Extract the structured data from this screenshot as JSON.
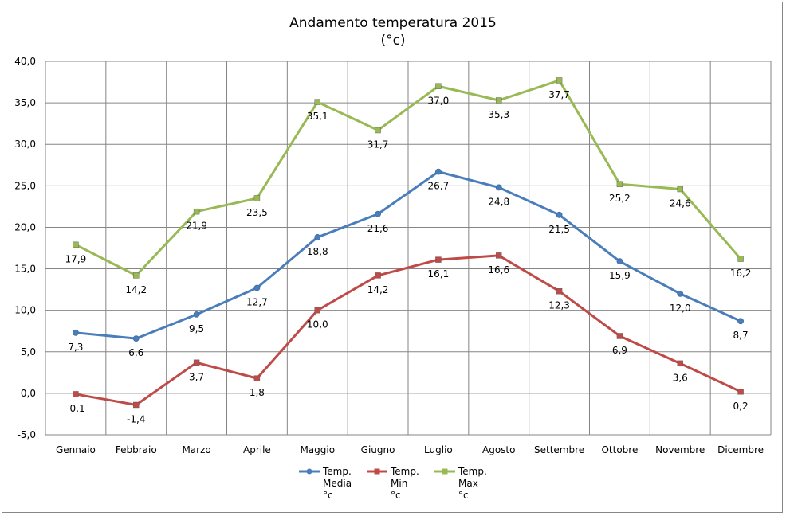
{
  "chart_data": {
    "type": "line",
    "title": "Andamento temperatura 2015",
    "subtitle": "(°c)",
    "categories": [
      "Gennaio",
      "Febbraio",
      "Marzo",
      "Aprile",
      "Maggio",
      "Giugno",
      "Luglio",
      "Agosto",
      "Settembre",
      "Ottobre",
      "Novembre",
      "Dicembre"
    ],
    "ylim": [
      -5,
      40
    ],
    "ytick_step": 5,
    "ytick_labels": [
      "-5,0",
      "0,0",
      "5,0",
      "10,0",
      "15,0",
      "20,0",
      "25,0",
      "30,0",
      "35,0",
      "40,0"
    ],
    "grid": true,
    "legend_position": "bottom",
    "series": [
      {
        "name_lines": [
          "Temp.",
          "Media",
          "°c"
        ],
        "color": "#4a7ebb",
        "marker": "circle",
        "values": [
          7.3,
          6.6,
          9.5,
          12.7,
          18.8,
          21.6,
          26.7,
          24.8,
          21.5,
          15.9,
          12.0,
          8.7
        ],
        "labels": [
          "7,3",
          "6,6",
          "9,5",
          "12,7",
          "18,8",
          "21,6",
          "26,7",
          "24,8",
          "21,5",
          "15,9",
          "12,0",
          "8,7"
        ]
      },
      {
        "name_lines": [
          "Temp.",
          "Min",
          "°c"
        ],
        "color": "#be4b48",
        "marker": "square",
        "values": [
          -0.1,
          -1.4,
          3.7,
          1.8,
          10.0,
          14.2,
          16.1,
          16.6,
          12.3,
          6.9,
          3.6,
          0.2
        ],
        "labels": [
          "-0,1",
          "-1,4",
          "3,7",
          "1,8",
          "10,0",
          "14,2",
          "16,1",
          "16,6",
          "12,3",
          "6,9",
          "3,6",
          "0,2"
        ]
      },
      {
        "name_lines": [
          "Temp.",
          "Max",
          "°c"
        ],
        "color": "#98b954",
        "marker": "square",
        "values": [
          17.9,
          14.2,
          21.9,
          23.5,
          35.1,
          31.7,
          37.0,
          35.3,
          37.7,
          25.2,
          24.6,
          16.2
        ],
        "labels": [
          "17,9",
          "14,2",
          "21,9",
          "23,5",
          "35,1",
          "31,7",
          "37,0",
          "35,3",
          "37,7",
          "25,2",
          "24,6",
          "16,2"
        ]
      }
    ]
  }
}
